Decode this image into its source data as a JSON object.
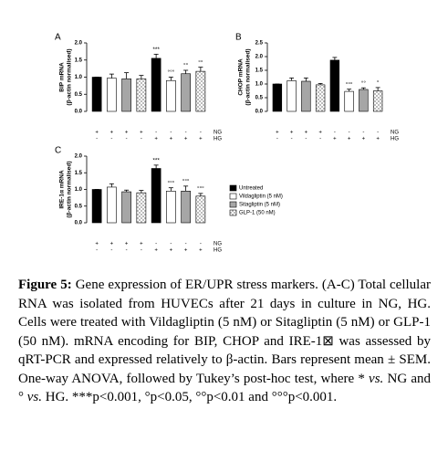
{
  "chart_data": [
    {
      "type": "bar",
      "panel": "A",
      "ylabel": [
        "BIP mRNA",
        "(β-actin normalised)"
      ],
      "ylim": [
        0,
        2
      ],
      "yticks": [
        {
          "value": 0,
          "label": "0.0"
        },
        {
          "value": 0.5,
          "label": "0.5"
        },
        {
          "value": 1,
          "label": "1.0"
        },
        {
          "value": 1.5,
          "label": "1.5"
        },
        {
          "value": 2,
          "label": "2.0"
        }
      ],
      "series": [
        {
          "color": "#000000",
          "values": [
            1.0,
            1.55
          ],
          "errors": [
            0,
            0.12
          ],
          "annotations": [
            null,
            "***"
          ]
        },
        {
          "color": "#ffffff",
          "values": [
            0.97,
            0.9
          ],
          "errors": [
            0.12,
            0.1
          ],
          "annotations": [
            null,
            "°°°"
          ]
        },
        {
          "color": "#a6a6a6",
          "values": [
            0.95,
            1.1
          ],
          "errors": [
            0.18,
            0.1
          ],
          "annotations": [
            null,
            "°°"
          ]
        },
        {
          "color": "#ffffff",
          "pattern": "checker",
          "values": [
            0.95,
            1.17
          ],
          "errors": [
            0.1,
            0.12
          ],
          "annotations": [
            null,
            "°°"
          ]
        }
      ],
      "conditions": [
        {
          "name": "NG",
          "marks": [
            "+",
            "+",
            "+",
            "+",
            "-",
            "-",
            "-",
            "-"
          ]
        },
        {
          "name": "HG",
          "marks": [
            "-",
            "-",
            "-",
            "-",
            "+",
            "+",
            "+",
            "+"
          ]
        }
      ]
    },
    {
      "type": "bar",
      "panel": "B",
      "ylabel": [
        "CHOP mRNA",
        "(β-actin normalised)"
      ],
      "ylim": [
        0,
        2.5
      ],
      "yticks": [
        {
          "value": 0,
          "label": "0.0"
        },
        {
          "value": 0.5,
          "label": "0.5"
        },
        {
          "value": 1,
          "label": "1.0"
        },
        {
          "value": 1.5,
          "label": "1.5"
        },
        {
          "value": 2,
          "label": "2.0"
        },
        {
          "value": 2.5,
          "label": "2.5"
        }
      ],
      "series": [
        {
          "color": "#000000",
          "values": [
            1.0,
            1.87
          ],
          "errors": [
            0,
            0.1
          ],
          "annotations": [
            null,
            null
          ]
        },
        {
          "color": "#ffffff",
          "values": [
            1.12,
            0.73
          ],
          "errors": [
            0.1,
            0.08
          ],
          "annotations": [
            null,
            "°°°"
          ]
        },
        {
          "color": "#a6a6a6",
          "values": [
            1.1,
            0.8
          ],
          "errors": [
            0.12,
            0.06
          ],
          "annotations": [
            null,
            "°°"
          ]
        },
        {
          "color": "#ffffff",
          "pattern": "checker",
          "values": [
            0.97,
            0.75
          ],
          "errors": [
            0.05,
            0.12
          ],
          "annotations": [
            null,
            "°"
          ]
        }
      ],
      "conditions": [
        {
          "name": "NG",
          "marks": [
            "+",
            "+",
            "+",
            "+",
            "-",
            "-",
            "-",
            "-"
          ]
        },
        {
          "name": "HG",
          "marks": [
            "-",
            "-",
            "-",
            "-",
            "+",
            "+",
            "+",
            "+"
          ]
        }
      ]
    },
    {
      "type": "bar",
      "panel": "C",
      "ylabel": [
        "IRE-1α mRNA",
        "(β-actin normalised)"
      ],
      "ylim": [
        0,
        2
      ],
      "yticks": [
        {
          "value": 0,
          "label": "0.0"
        },
        {
          "value": 0.5,
          "label": "0.5"
        },
        {
          "value": 1,
          "label": "1.0"
        },
        {
          "value": 1.5,
          "label": "1.5"
        },
        {
          "value": 2,
          "label": "2.0"
        }
      ],
      "legend": "right",
      "series": [
        {
          "name": "Untreated",
          "color": "#000000",
          "values": [
            1.0,
            1.63
          ],
          "errors": [
            0,
            0.1
          ],
          "annotations": [
            null,
            "***"
          ]
        },
        {
          "name": "Vildagliptin (5 nM)",
          "color": "#ffffff",
          "values": [
            1.07,
            0.95
          ],
          "errors": [
            0.1,
            0.1
          ],
          "annotations": [
            null,
            "°°°"
          ]
        },
        {
          "name": "Sitagliptin (5 nM)",
          "color": "#a6a6a6",
          "values": [
            0.93,
            0.95
          ],
          "errors": [
            0.05,
            0.15
          ],
          "annotations": [
            null,
            "°°°"
          ]
        },
        {
          "name": "GLP-1 (50 nM)",
          "color": "#ffffff",
          "pattern": "checker",
          "values": [
            0.9,
            0.8
          ],
          "errors": [
            0.07,
            0.08
          ],
          "annotations": [
            null,
            "°°°"
          ]
        }
      ],
      "conditions": [
        {
          "name": "NG",
          "marks": [
            "+",
            "+",
            "+",
            "+",
            "-",
            "-",
            "-",
            "-"
          ]
        },
        {
          "name": "HG",
          "marks": [
            "-",
            "-",
            "-",
            "-",
            "+",
            "+",
            "+",
            "+"
          ]
        }
      ]
    }
  ],
  "caption": {
    "label": "Figure 5:",
    "runs": [
      {
        "text": " Gene expression of ER/UPR stress markers. (A-C) Total cellular RNA was isolated from HUVECs after 21 days in culture in NG, HG. Cells were treated with Vildagliptin (5 nM) or Sitagliptin (5 nM) or GLP-1 (50 nM). mRNA encoding for BIP, CHOP and IRE-1⊠ was assessed by qRT-PCR and expressed relatively to β-actin. Bars represent mean ± SEM. One-way ANOVA, followed by Tukey’s post-hoc test, where * "
      },
      {
        "text": "vs.",
        "italic": true
      },
      {
        "text": " NG and ° "
      },
      {
        "text": "vs.",
        "italic": true
      },
      {
        "text": " HG. ***p<0.001, °p<0.05, °°p<0.01 and °°°p<0.001."
      }
    ]
  }
}
